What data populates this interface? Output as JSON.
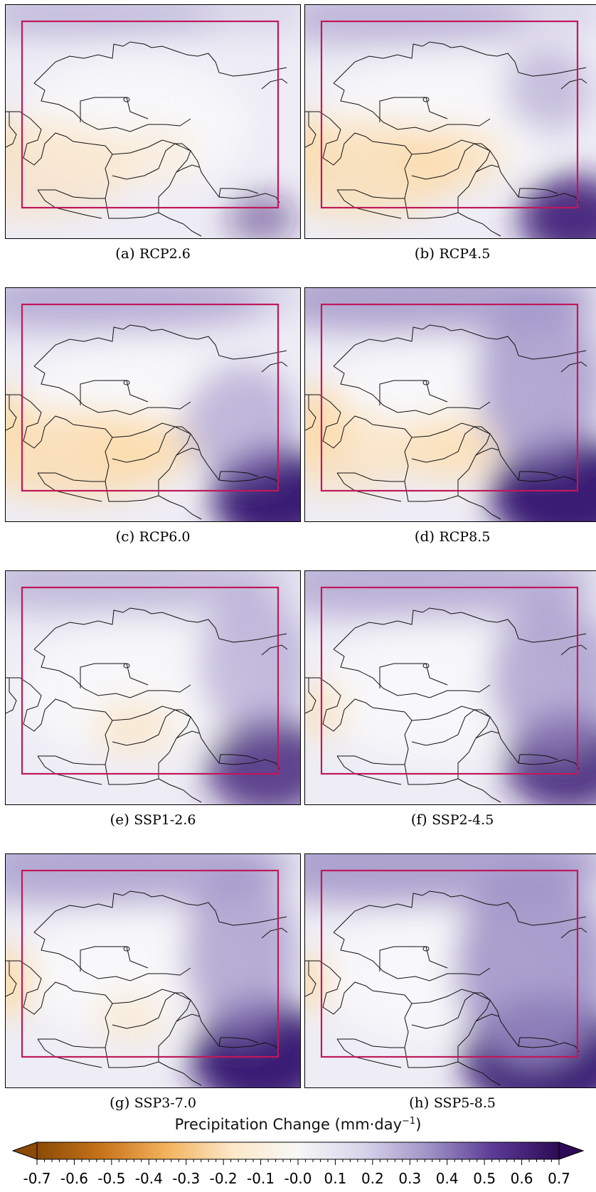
{
  "figure": {
    "panels": [
      {
        "id": "a",
        "label": "(a)",
        "scenario": "RCP2.6"
      },
      {
        "id": "b",
        "label": "(b)",
        "scenario": "RCP4.5"
      },
      {
        "id": "c",
        "label": "(c)",
        "scenario": "RCP6.0"
      },
      {
        "id": "d",
        "label": "(d)",
        "scenario": "RCP8.5"
      },
      {
        "id": "e",
        "label": "(e)",
        "scenario": "SSP1-2.6"
      },
      {
        "id": "f",
        "label": "(f)",
        "scenario": "SSP2-4.5"
      },
      {
        "id": "g",
        "label": "(g)",
        "scenario": "SSP3-7.0"
      },
      {
        "id": "h",
        "label": "(h)",
        "scenario": "SSP5-8.5"
      }
    ],
    "colorbar": {
      "title": "Precipitation Change (mm·day",
      "title_sup": "−1",
      "title_end": ")",
      "ticks": [
        "-0.7",
        "-0.6",
        "-0.5",
        "-0.4",
        "-0.3",
        "-0.2",
        "-0.1",
        "-0.0",
        "0.1",
        "0.2",
        "0.3",
        "0.4",
        "0.5",
        "0.6",
        "0.7"
      ],
      "colors": [
        "#8b4a06",
        "#c8741a",
        "#f3b35e",
        "#fde8c9",
        "#f7f7f7",
        "#d8d4ea",
        "#9f93c7",
        "#5b3a96",
        "#2d0a55"
      ]
    },
    "box_color": "#c0185a"
  }
}
